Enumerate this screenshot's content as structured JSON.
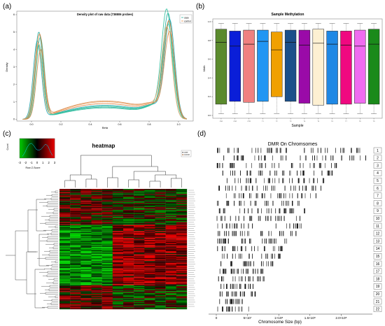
{
  "panel_labels": {
    "a": "(a)",
    "b": "(b)",
    "c": "(c)",
    "d": "(d)"
  },
  "chart_data": [
    {
      "id": "a",
      "type": "line",
      "title": "Density plot of raw data (738806 probes)",
      "xlabel": "Beta",
      "ylabel": "Density",
      "xlim": [
        -0.1,
        1.1
      ],
      "ylim": [
        -0.1,
        6.2
      ],
      "xticks": [
        0.0,
        0.2,
        0.4,
        0.6,
        0.8,
        1.0
      ],
      "xtick_labels": [
        "0.0",
        "0.2",
        "0.4",
        "0.6",
        "0.8",
        "1.0"
      ],
      "yticks": [
        0,
        1,
        2,
        3,
        4,
        5,
        6
      ],
      "ytick_labels": [
        "0",
        "1",
        "2",
        "3",
        "4",
        "5",
        "6"
      ],
      "legend": {
        "position": "top-right",
        "entries": [
          "case",
          "control"
        ],
        "colors": [
          "#2ab4a0",
          "#e89550"
        ]
      },
      "series": [
        {
          "group": "case",
          "color": "#1aa89a",
          "peak_low": 5.0,
          "peak_high": 5.8,
          "valley": 0.7,
          "offset_low": 0.0,
          "offset_high": 0.0
        },
        {
          "group": "case",
          "color": "#2bbf9b",
          "peak_low": 4.7,
          "peak_high": 6.0,
          "valley": 0.65,
          "offset_low": 0.01,
          "offset_high": -0.01
        },
        {
          "group": "case",
          "color": "#19a6b3",
          "peak_low": 4.5,
          "peak_high": 5.5,
          "valley": 0.8,
          "offset_low": -0.01,
          "offset_high": 0.01
        },
        {
          "group": "case",
          "color": "#38c79a",
          "peak_low": 4.3,
          "peak_high": 5.2,
          "valley": 0.75,
          "offset_low": 0.0,
          "offset_high": 0.0
        },
        {
          "group": "control",
          "color": "#e07d3a",
          "peak_low": 4.9,
          "peak_high": 5.4,
          "valley": 0.9,
          "offset_low": 0.005,
          "offset_high": 0.005
        },
        {
          "group": "control",
          "color": "#f0a66a",
          "peak_low": 4.4,
          "peak_high": 5.0,
          "valley": 1.0,
          "offset_low": -0.005,
          "offset_high": -0.008
        },
        {
          "group": "control",
          "color": "#d88a4a",
          "peak_low": 4.0,
          "peak_high": 4.8,
          "valley": 1.05,
          "offset_low": 0.012,
          "offset_high": 0.01
        }
      ]
    },
    {
      "id": "b",
      "type": "box",
      "title": "Sample Methylation",
      "xlabel": "Sample",
      "ylabel": "Meth",
      "ylim": [
        0.0,
        1.0
      ],
      "yticks": [
        0.0,
        0.2,
        0.4,
        0.6,
        0.8,
        1.0
      ],
      "ytick_labels": [
        "0.0",
        "0.2",
        "0.4",
        "0.6",
        "0.8",
        "1.0"
      ],
      "boxes": [
        {
          "label": "CN1",
          "color": "#5a8a2c",
          "q1": 0.12,
          "median": 0.78,
          "q3": 0.92,
          "low": 0.02,
          "high": 0.98
        },
        {
          "label": "CN2",
          "color": "#0a1ed8",
          "q1": 0.15,
          "median": 0.74,
          "q3": 0.9,
          "low": 0.02,
          "high": 0.98
        },
        {
          "label": "CTR",
          "color": "#f08080",
          "q1": 0.14,
          "median": 0.76,
          "q3": 0.91,
          "low": 0.02,
          "high": 0.98
        },
        {
          "label": "T1",
          "color": "#2196f3",
          "q1": 0.15,
          "median": 0.79,
          "q3": 0.91,
          "low": 0.02,
          "high": 0.98
        },
        {
          "label": "T2",
          "color": "#f0a000",
          "q1": 0.2,
          "median": 0.7,
          "q3": 0.89,
          "low": 0.02,
          "high": 0.98
        },
        {
          "label": "T3",
          "color": "#1a4f8a",
          "q1": 0.15,
          "median": 0.78,
          "q3": 0.91,
          "low": 0.02,
          "high": 0.98
        },
        {
          "label": "T4",
          "color": "#9a0aa8",
          "q1": 0.13,
          "median": 0.75,
          "q3": 0.91,
          "low": 0.02,
          "high": 0.98
        },
        {
          "label": "T5",
          "color": "#fdf0d2",
          "q1": 0.11,
          "median": 0.77,
          "q3": 0.92,
          "low": 0.02,
          "high": 0.98
        },
        {
          "label": "T6",
          "color": "#1e88e5",
          "q1": 0.12,
          "median": 0.76,
          "q3": 0.9,
          "low": 0.02,
          "high": 0.98
        },
        {
          "label": "T7",
          "color": "#f00880",
          "q1": 0.12,
          "median": 0.75,
          "q3": 0.9,
          "low": 0.02,
          "high": 0.98
        },
        {
          "label": "T8",
          "color": "#f06cf0",
          "q1": 0.13,
          "median": 0.74,
          "q3": 0.91,
          "low": 0.02,
          "high": 0.98
        },
        {
          "label": "T9",
          "color": "#1a8a1a",
          "q1": 0.12,
          "median": 0.76,
          "q3": 0.92,
          "low": 0.02,
          "high": 0.98
        }
      ]
    },
    {
      "id": "c",
      "type": "heatmap",
      "title": "heatmap",
      "color_key": {
        "ticks": [
          "-3",
          "-2",
          "-1",
          "0",
          "1",
          "2",
          "3"
        ],
        "xlabel": "Row Z-Score",
        "ylabel": "Count",
        "colors": [
          "#00b000",
          "#000000",
          "#e00000"
        ]
      },
      "legend": {
        "entries": [
          "case",
          "control"
        ]
      },
      "n_columns": 12,
      "n_rows": 120,
      "column_groups": [
        "control",
        "control",
        "control",
        "control",
        "control",
        "case",
        "case",
        "case",
        "case",
        "case",
        "case",
        "case"
      ]
    },
    {
      "id": "d",
      "type": "strip",
      "title": "DMR On Chromsomes",
      "xlabel": "Chromosome Size (bp)",
      "xlim": [
        0,
        250000000
      ],
      "xticks": [
        0,
        50000000,
        100000000,
        150000000,
        200000000
      ],
      "xtick_labels": [
        "0",
        "5×10⁷",
        "1×10⁸",
        "1.5×10⁸",
        "2.0×10⁸"
      ],
      "chromosomes": [
        "1",
        "2",
        "3",
        "4",
        "5",
        "6",
        "7",
        "8",
        "9",
        "10",
        "11",
        "12",
        "13",
        "14",
        "15",
        "16",
        "17",
        "18",
        "19",
        "20",
        "21",
        "22"
      ],
      "chrom_sizes_mb": [
        249,
        243,
        198,
        190,
        181,
        171,
        159,
        146,
        141,
        135,
        135,
        133,
        114,
        107,
        102,
        90,
        83,
        80,
        59,
        64,
        47,
        51
      ]
    }
  ]
}
